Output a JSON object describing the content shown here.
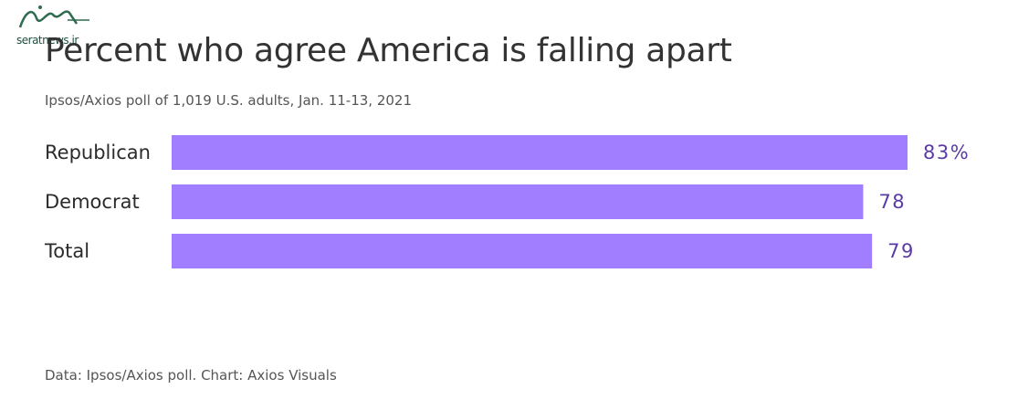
{
  "watermark": {
    "site": "seratnews.ir"
  },
  "chart_data": {
    "type": "bar",
    "orientation": "horizontal",
    "title": "Percent who agree America is falling apart",
    "subtitle": "Ipsos/Axios poll of 1,019 U.S. adults, Jan. 11-13, 2021",
    "categories": [
      "Republican",
      "Democrat",
      "Total"
    ],
    "values": [
      83,
      78,
      79
    ],
    "value_labels": [
      "83%",
      "78",
      "79"
    ],
    "bar_color": "#a07eff",
    "value_color": "#5b3aa6",
    "xlim": [
      0,
      83
    ],
    "grid": false,
    "footer": "Data: Ipsos/Axios poll. Chart: Axios Visuals"
  }
}
